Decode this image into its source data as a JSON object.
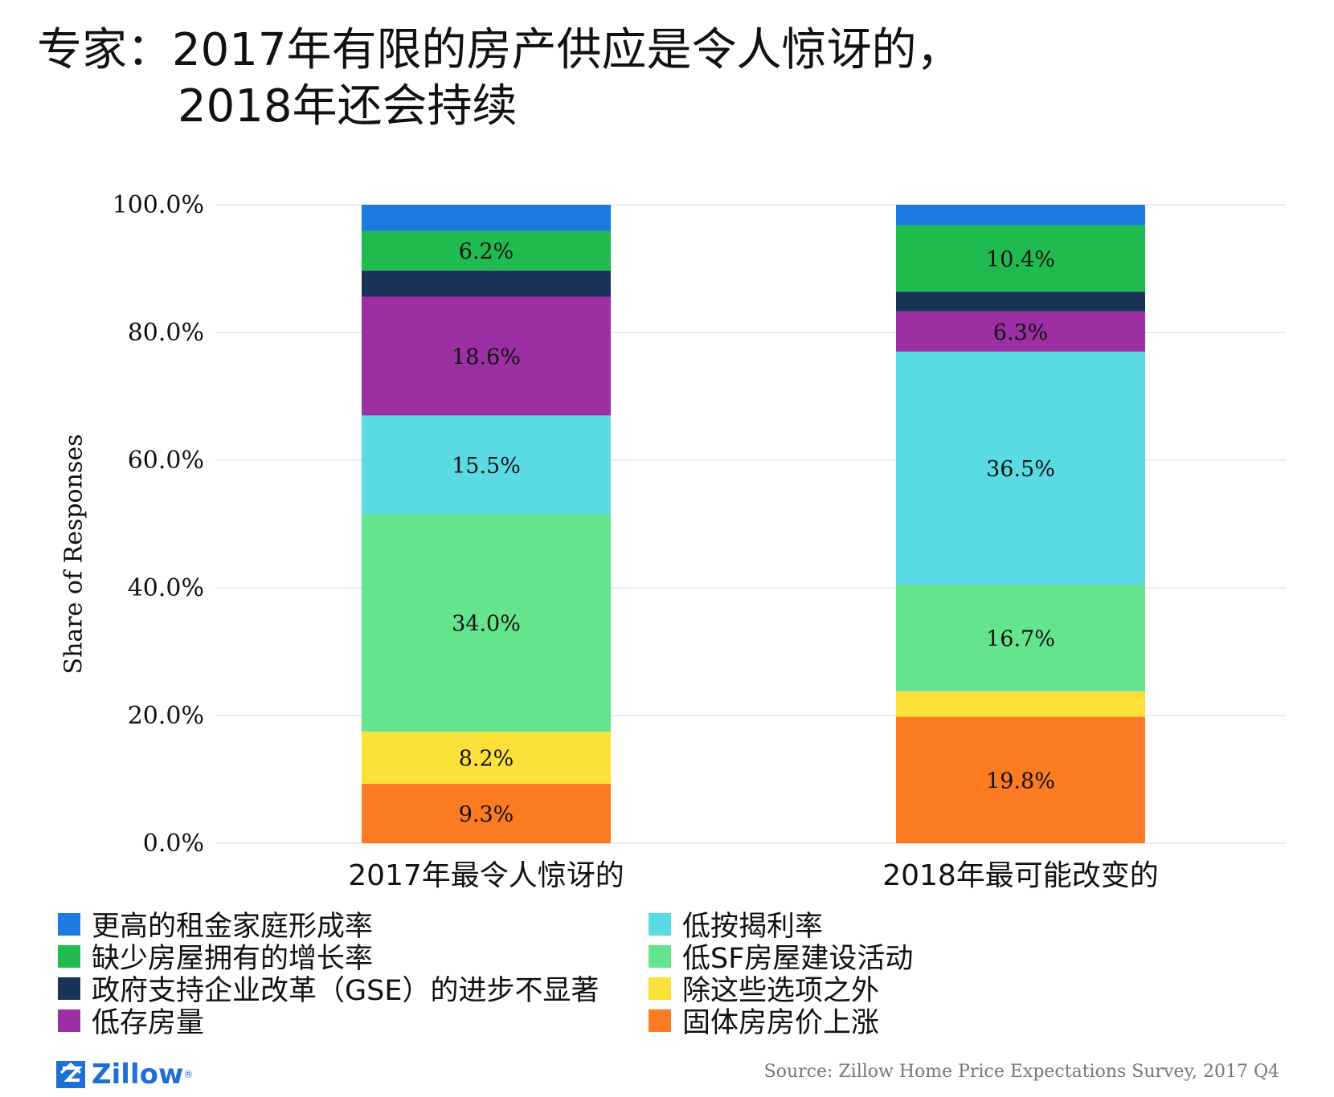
{
  "title": {
    "line1": "专家：2017年有限的房产供应是令人惊讶的，",
    "line2": "2018年还会持续"
  },
  "chart_data": {
    "type": "bar",
    "stacked": true,
    "title": "专家：2017年有限的房产供应是令人惊讶的，2018年还会持续",
    "xlabel": "",
    "ylabel": "Share of Responses",
    "ylim": [
      0,
      100
    ],
    "yticks": [
      0,
      20,
      40,
      60,
      80,
      100
    ],
    "ytick_labels": [
      "0.0%",
      "20.0%",
      "40.0%",
      "60.0%",
      "80.0%",
      "100.0%"
    ],
    "grid": true,
    "categories": [
      "2017年最令人惊讶的",
      "2018年最可能改变的"
    ],
    "series": [
      {
        "name": "固体房房价上涨",
        "color": "#fb7a22",
        "values": [
          9.3,
          19.8
        ],
        "labels": [
          "9.3%",
          "19.8%"
        ]
      },
      {
        "name": "除这些选项之外",
        "color": "#fbe03a",
        "values": [
          8.2,
          4.0
        ],
        "labels": [
          "8.2%",
          ""
        ]
      },
      {
        "name": "低SF房屋建设活动",
        "color": "#64e48c",
        "values": [
          34.0,
          16.7
        ],
        "labels": [
          "34.0%",
          "16.7%"
        ]
      },
      {
        "name": "低按揭利率",
        "color": "#5adbe3",
        "values": [
          15.5,
          36.5
        ],
        "labels": [
          "15.5%",
          "36.5%"
        ]
      },
      {
        "name": "低存房量",
        "color": "#9b2fa3",
        "values": [
          18.6,
          6.3
        ],
        "labels": [
          "18.6%",
          "6.3%"
        ]
      },
      {
        "name": "政府支持企业改革（GSE）的进步不显著",
        "color": "#1a3358",
        "values": [
          4.1,
          3.1
        ],
        "labels": [
          "",
          ""
        ]
      },
      {
        "name": "缺少房屋拥有的增长率",
        "color": "#20bb4f",
        "values": [
          6.2,
          10.4
        ],
        "labels": [
          "6.2%",
          "10.4%"
        ]
      },
      {
        "name": "更高的租金家庭形成率",
        "color": "#1b7be0",
        "values": [
          4.1,
          3.2
        ],
        "labels": [
          "",
          ""
        ]
      }
    ],
    "legend": [
      {
        "label": "更高的租金家庭形成率",
        "color": "#1b7be0"
      },
      {
        "label": "低按揭利率",
        "color": "#5adbe3"
      },
      {
        "label": "缺少房屋拥有的增长率",
        "color": "#20bb4f"
      },
      {
        "label": "低SF房屋建设活动",
        "color": "#64e48c"
      },
      {
        "label": "政府支持企业改革（GSE）的进步不显著",
        "color": "#1a3358"
      },
      {
        "label": "除这些选项之外",
        "color": "#fbe03a"
      },
      {
        "label": "低存房量",
        "color": "#9b2fa3"
      },
      {
        "label": "固体房房价上涨",
        "color": "#fb7a22"
      }
    ],
    "legend_position": "bottom"
  },
  "branding": {
    "logo_text": "Zillow",
    "logo_mark": "®"
  },
  "source": "Source: Zillow Home Price Expectations Survey, 2017 Q4"
}
